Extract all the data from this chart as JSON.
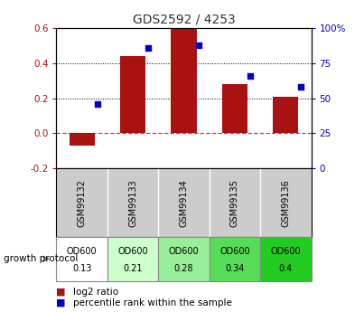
{
  "title": "GDS2592 / 4253",
  "samples": [
    "GSM99132",
    "GSM99133",
    "GSM99134",
    "GSM99135",
    "GSM99136"
  ],
  "log2_ratio": [
    -0.07,
    0.44,
    0.595,
    0.28,
    0.21
  ],
  "percentile_rank": [
    46,
    86,
    88,
    66,
    58
  ],
  "ylim_left": [
    -0.2,
    0.6
  ],
  "ylim_right": [
    0,
    100
  ],
  "yticks_left": [
    -0.2,
    0.0,
    0.2,
    0.4,
    0.6
  ],
  "yticks_right": [
    0,
    25,
    50,
    75,
    100
  ],
  "bar_color": "#aa1111",
  "dot_color": "#0000cc",
  "zero_line_color": "#cc4444",
  "protocol_bg": [
    "#ffffff",
    "#ccffcc",
    "#99ee99",
    "#55dd55",
    "#22cc22"
  ],
  "sample_bg": "#cccccc",
  "legend_log2": "log2 ratio",
  "legend_pct": "percentile rank within the sample",
  "growth_protocol_label": "growth protocol",
  "protocol_values": [
    "0.13",
    "0.21",
    "0.28",
    "0.34",
    "0.4"
  ]
}
